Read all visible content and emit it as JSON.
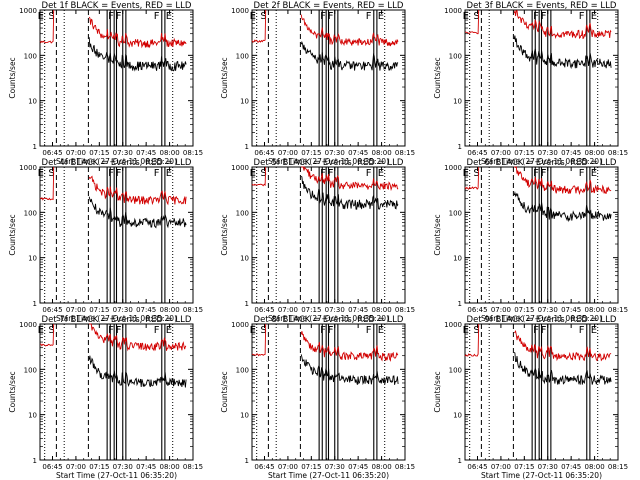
{
  "series_colors": {
    "events": "#000000",
    "lld": "#d20000"
  },
  "y_ticks": [
    "1",
    "10",
    "100",
    "1000"
  ],
  "x_ticks": [
    "06:45",
    "07:00",
    "07:15",
    "07:30",
    "07:45",
    "08:00",
    "08:15"
  ],
  "ylabel": "Counts/sec",
  "xlabel": "Start Time (27-Oct-11 06:35:20)",
  "markers": {
    "e": "E",
    "s": "S",
    "f": "F"
  },
  "chart_data": [
    {
      "type": "line",
      "title": "Det 1f BLACK = Events, RED = LLD",
      "ylim": [
        1,
        1000
      ],
      "yscale": "log",
      "xlim": [
        "06:37",
        "08:15"
      ],
      "series": [
        {
          "name": "LLD",
          "approx_level": 220
        },
        {
          "name": "Events",
          "approx_level": 70
        }
      ]
    },
    {
      "type": "line",
      "title": "Det 2f BLACK = Events, RED = LLD",
      "ylim": [
        1,
        1000
      ],
      "yscale": "log",
      "xlim": [
        "06:37",
        "08:15"
      ],
      "series": [
        {
          "name": "LLD",
          "approx_level": 230
        },
        {
          "name": "Events",
          "approx_level": 70
        }
      ]
    },
    {
      "type": "line",
      "title": "Det 3f BLACK = Events, RED = LLD",
      "ylim": [
        1,
        1000
      ],
      "yscale": "log",
      "xlim": [
        "06:37",
        "08:15"
      ],
      "series": [
        {
          "name": "LLD",
          "approx_level": 350
        },
        {
          "name": "Events",
          "approx_level": 80
        }
      ]
    },
    {
      "type": "line",
      "title": "Det 4f BLACK = Events, RED = LLD",
      "ylim": [
        1,
        1000
      ],
      "yscale": "log",
      "xlim": [
        "06:37",
        "08:15"
      ],
      "series": [
        {
          "name": "LLD",
          "approx_level": 220
        },
        {
          "name": "Events",
          "approx_level": 70
        }
      ]
    },
    {
      "type": "line",
      "title": "Det 5f BLACK = Events, RED = LLD",
      "ylim": [
        1,
        1000
      ],
      "yscale": "log",
      "xlim": [
        "06:37",
        "08:15"
      ],
      "series": [
        {
          "name": "LLD",
          "approx_level": 450
        },
        {
          "name": "Events",
          "approx_level": 180
        }
      ]
    },
    {
      "type": "line",
      "title": "Det 6f BLACK = Events, RED = LLD",
      "ylim": [
        1,
        1000
      ],
      "yscale": "log",
      "xlim": [
        "06:37",
        "08:15"
      ],
      "series": [
        {
          "name": "LLD",
          "approx_level": 380
        },
        {
          "name": "Events",
          "approx_level": 100
        }
      ]
    },
    {
      "type": "line",
      "title": "Det 7f BLACK = Events, RED = LLD",
      "ylim": [
        1,
        1000
      ],
      "yscale": "log",
      "xlim": [
        "06:37",
        "08:15"
      ],
      "series": [
        {
          "name": "LLD",
          "approx_level": 380
        },
        {
          "name": "Events",
          "approx_level": 60
        }
      ]
    },
    {
      "type": "line",
      "title": "Det 8f BLACK = Events, RED = LLD",
      "ylim": [
        1,
        1000
      ],
      "yscale": "log",
      "xlim": [
        "06:37",
        "08:15"
      ],
      "series": [
        {
          "name": "LLD",
          "approx_level": 230
        },
        {
          "name": "Events",
          "approx_level": 70
        }
      ]
    },
    {
      "type": "line",
      "title": "Det 9f BLACK = Events, RED = LLD",
      "ylim": [
        1,
        1000
      ],
      "yscale": "log",
      "xlim": [
        "06:37",
        "08:15"
      ],
      "series": [
        {
          "name": "LLD",
          "approx_level": 230
        },
        {
          "name": "Events",
          "approx_level": 70
        }
      ]
    }
  ]
}
